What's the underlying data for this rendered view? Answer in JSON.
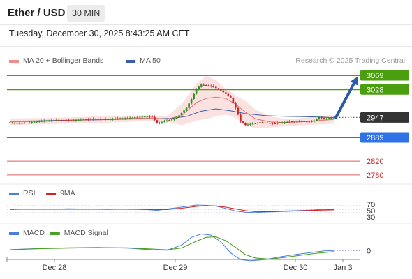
{
  "header": {
    "pair": "Ether / USD",
    "timeframe": "30 MIN"
  },
  "datetime": "Tuesday, December 30, 2025 8:43:25 AM CET",
  "credit": "Research © 2025 Trading Central",
  "colors": {
    "resistance": "#4a9e0f",
    "support": "#2f72e8",
    "minor": "#e06060",
    "current": "#333333",
    "candle_up": "#2e8b1e",
    "candle_down": "#c62828",
    "ma50": "#3b5ea8",
    "ma20": "#e07070",
    "band_fill": "#fbdcdc",
    "arrow": "#2c5aa0",
    "rsi": "#4a7ede",
    "rsi_ma": "#d62020",
    "macd": "#4a7ede",
    "macd_signal": "#4aa020"
  },
  "chart_data": [
    {
      "type": "candlestick",
      "panel": "price",
      "legend": [
        {
          "label": "MA 20 + Bollinger Bands",
          "color": "#f08c8c"
        },
        {
          "label": "MA 50",
          "color": "#3b5ea8"
        }
      ],
      "levels": [
        {
          "value": 3069,
          "label": "3069",
          "kind": "resistance"
        },
        {
          "value": 3028,
          "label": "3028",
          "kind": "resistance"
        },
        {
          "value": 2947,
          "label": "2947",
          "kind": "current"
        },
        {
          "value": 2889,
          "label": "2889",
          "kind": "support"
        },
        {
          "value": 2820,
          "label": "2820",
          "kind": "minor"
        },
        {
          "value": 2780,
          "label": "2780",
          "kind": "minor"
        }
      ],
      "projection": {
        "from": 2947,
        "to": 3069
      },
      "x_ticks": [
        "Dec 28",
        "Dec 29",
        "Dec 30",
        "Jan 3"
      ],
      "price_path": [
        [
          0,
          2932
        ],
        [
          4,
          2930
        ],
        [
          8,
          2932
        ],
        [
          12,
          2936
        ],
        [
          16,
          2938
        ],
        [
          20,
          2940
        ],
        [
          24,
          2938
        ],
        [
          28,
          2940
        ],
        [
          32,
          2942
        ],
        [
          36,
          2943
        ],
        [
          40,
          2942
        ],
        [
          44,
          2944
        ],
        [
          48,
          2945
        ],
        [
          52,
          2948
        ],
        [
          56,
          2950
        ],
        [
          58,
          2949
        ],
        [
          60,
          2930
        ],
        [
          62,
          2934
        ],
        [
          64,
          2938
        ],
        [
          66,
          2941
        ],
        [
          68,
          2946
        ],
        [
          70,
          2960
        ],
        [
          72,
          2975
        ],
        [
          74,
          3000
        ],
        [
          76,
          3030
        ],
        [
          78,
          3042
        ],
        [
          80,
          3040
        ],
        [
          82,
          3038
        ],
        [
          84,
          3032
        ],
        [
          86,
          3025
        ],
        [
          88,
          3015
        ],
        [
          90,
          3005
        ],
        [
          92,
          2975
        ],
        [
          94,
          2935
        ],
        [
          96,
          2925
        ],
        [
          98,
          2928
        ],
        [
          100,
          2930
        ],
        [
          102,
          2933
        ],
        [
          104,
          2932
        ],
        [
          106,
          2930
        ],
        [
          108,
          2929
        ],
        [
          110,
          2932
        ],
        [
          112,
          2933
        ],
        [
          114,
          2935
        ],
        [
          116,
          2934
        ],
        [
          118,
          2936
        ],
        [
          120,
          2935
        ],
        [
          122,
          2934
        ],
        [
          124,
          2937
        ],
        [
          126,
          2948
        ],
        [
          128,
          2942
        ],
        [
          130,
          2945
        ],
        [
          132,
          2947
        ]
      ],
      "ma20": [
        [
          0,
          2934
        ],
        [
          12,
          2935
        ],
        [
          24,
          2938
        ],
        [
          36,
          2941
        ],
        [
          48,
          2944
        ],
        [
          58,
          2945
        ],
        [
          64,
          2942
        ],
        [
          70,
          2952
        ],
        [
          76,
          2990
        ],
        [
          80,
          3002
        ],
        [
          84,
          3006
        ],
        [
          88,
          3002
        ],
        [
          92,
          2985
        ],
        [
          96,
          2962
        ],
        [
          100,
          2943
        ],
        [
          106,
          2934
        ],
        [
          112,
          2932
        ],
        [
          118,
          2934
        ],
        [
          124,
          2937
        ],
        [
          132,
          2941
        ]
      ],
      "ma50": [
        [
          0,
          2936
        ],
        [
          12,
          2937
        ],
        [
          24,
          2939
        ],
        [
          36,
          2940
        ],
        [
          48,
          2942
        ],
        [
          58,
          2943
        ],
        [
          66,
          2944
        ],
        [
          72,
          2950
        ],
        [
          78,
          2965
        ],
        [
          84,
          2972
        ],
        [
          90,
          2966
        ],
        [
          96,
          2958
        ],
        [
          104,
          2952
        ],
        [
          112,
          2950
        ],
        [
          120,
          2949
        ],
        [
          126,
          2948
        ],
        [
          132,
          2946
        ]
      ],
      "band_upper": [
        [
          0,
          2944
        ],
        [
          12,
          2945
        ],
        [
          24,
          2947
        ],
        [
          36,
          2950
        ],
        [
          48,
          2952
        ],
        [
          58,
          2953
        ],
        [
          64,
          2950
        ],
        [
          70,
          2985
        ],
        [
          76,
          3045
        ],
        [
          80,
          3068
        ],
        [
          84,
          3055
        ],
        [
          88,
          3030
        ],
        [
          92,
          3012
        ],
        [
          96,
          2995
        ],
        [
          100,
          2970
        ],
        [
          106,
          2950
        ],
        [
          112,
          2943
        ],
        [
          118,
          2944
        ],
        [
          124,
          2949
        ],
        [
          132,
          2954
        ]
      ],
      "band_lower": [
        [
          0,
          2925
        ],
        [
          12,
          2927
        ],
        [
          24,
          2929
        ],
        [
          36,
          2931
        ],
        [
          48,
          2934
        ],
        [
          58,
          2936
        ],
        [
          64,
          2934
        ],
        [
          70,
          2925
        ],
        [
          76,
          2938
        ],
        [
          80,
          2942
        ],
        [
          84,
          2950
        ],
        [
          88,
          2955
        ],
        [
          92,
          2945
        ],
        [
          96,
          2924
        ],
        [
          100,
          2916
        ],
        [
          106,
          2918
        ],
        [
          112,
          2921
        ],
        [
          118,
          2924
        ],
        [
          124,
          2926
        ],
        [
          132,
          2929
        ]
      ]
    },
    {
      "type": "line",
      "panel": "rsi",
      "legend": [
        {
          "label": "RSI",
          "color": "#4a7ede"
        },
        {
          "label": "9MA",
          "color": "#d62020"
        }
      ],
      "y_ticks": [
        "70",
        "50",
        "30"
      ],
      "series": [
        {
          "name": "RSI",
          "values": [
            [
              0,
              48
            ],
            [
              8,
              52
            ],
            [
              16,
              50
            ],
            [
              24,
              53
            ],
            [
              32,
              51
            ],
            [
              40,
              49
            ],
            [
              48,
              52
            ],
            [
              56,
              48
            ],
            [
              60,
              44
            ],
            [
              66,
              55
            ],
            [
              72,
              66
            ],
            [
              76,
              74
            ],
            [
              80,
              72
            ],
            [
              84,
              68
            ],
            [
              88,
              55
            ],
            [
              92,
              40
            ],
            [
              96,
              33
            ],
            [
              100,
              31
            ],
            [
              104,
              34
            ],
            [
              108,
              36
            ],
            [
              112,
              40
            ],
            [
              116,
              42
            ],
            [
              120,
              44
            ],
            [
              124,
              46
            ],
            [
              128,
              51
            ],
            [
              132,
              48
            ]
          ]
        },
        {
          "name": "9MA",
          "values": [
            [
              0,
              50
            ],
            [
              16,
              50
            ],
            [
              32,
              50
            ],
            [
              48,
              50
            ],
            [
              58,
              49
            ],
            [
              64,
              48
            ],
            [
              70,
              56
            ],
            [
              76,
              66
            ],
            [
              80,
              70
            ],
            [
              84,
              69
            ],
            [
              88,
              62
            ],
            [
              92,
              52
            ],
            [
              96,
              42
            ],
            [
              100,
              37
            ],
            [
              106,
              36
            ],
            [
              112,
              38
            ],
            [
              120,
              42
            ],
            [
              126,
              45
            ],
            [
              132,
              47
            ]
          ]
        }
      ]
    },
    {
      "type": "line",
      "panel": "macd",
      "legend": [
        {
          "label": "MACD",
          "color": "#4a7ede"
        },
        {
          "label": "MACD Signal",
          "color": "#4aa020"
        }
      ],
      "y_ticks": [
        "0"
      ],
      "series": [
        {
          "name": "MACD",
          "values": [
            [
              0,
              1.0
            ],
            [
              12,
              2.0
            ],
            [
              24,
              2.6
            ],
            [
              36,
              3.0
            ],
            [
              48,
              2.4
            ],
            [
              58,
              0.8
            ],
            [
              64,
              0.5
            ],
            [
              70,
              5.0
            ],
            [
              74,
              12.0
            ],
            [
              78,
              15.0
            ],
            [
              82,
              14.0
            ],
            [
              86,
              8.0
            ],
            [
              90,
              -2.0
            ],
            [
              94,
              -8.0
            ],
            [
              98,
              -9.0
            ],
            [
              104,
              -8.0
            ],
            [
              110,
              -5.5
            ],
            [
              116,
              -3.5
            ],
            [
              122,
              -1.8
            ],
            [
              128,
              -0.2
            ],
            [
              132,
              0.2
            ]
          ]
        },
        {
          "name": "MACD Signal",
          "values": [
            [
              0,
              0.8
            ],
            [
              12,
              1.8
            ],
            [
              24,
              2.4
            ],
            [
              36,
              2.8
            ],
            [
              48,
              2.6
            ],
            [
              58,
              1.5
            ],
            [
              64,
              0.8
            ],
            [
              70,
              2.5
            ],
            [
              76,
              8.5
            ],
            [
              80,
              12.0
            ],
            [
              84,
              12.5
            ],
            [
              88,
              9.0
            ],
            [
              92,
              3.0
            ],
            [
              96,
              -3.5
            ],
            [
              100,
              -6.5
            ],
            [
              106,
              -7.5
            ],
            [
              112,
              -6.0
            ],
            [
              118,
              -4.2
            ],
            [
              124,
              -2.5
            ],
            [
              132,
              -0.8
            ]
          ]
        }
      ]
    }
  ]
}
